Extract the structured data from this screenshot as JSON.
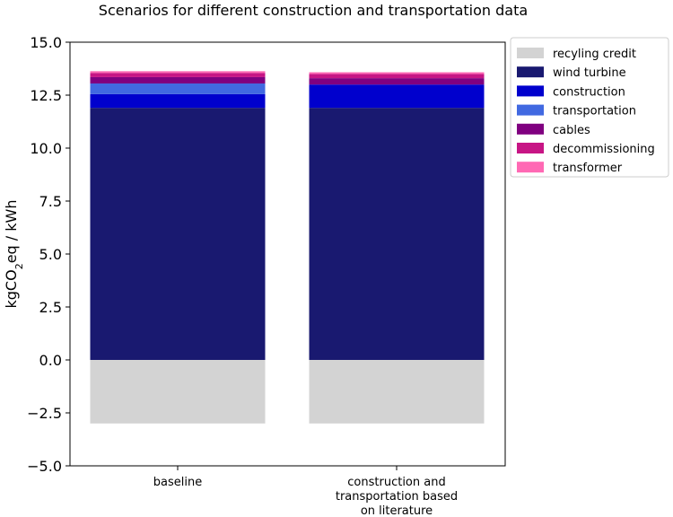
{
  "chart_data": {
    "type": "bar",
    "stacked": true,
    "title": "Scenarios for different construction and transportation data",
    "ylabel": "kgCO",
    "ylabel_sub": "2",
    "ylabel_tail": "eq / kWh",
    "ylim": [
      -5.0,
      15.0
    ],
    "yticks": [
      "−5.0",
      "−2.5",
      "0.0",
      "2.5",
      "5.0",
      "7.5",
      "10.0",
      "12.5",
      "15.0"
    ],
    "categories": [
      [
        "baseline"
      ],
      [
        "construction and",
        "transportation based",
        "on literature"
      ]
    ],
    "series": [
      {
        "name": "recyling credit",
        "color": "#d3d3d3",
        "values": [
          -3.0,
          -3.0
        ]
      },
      {
        "name": "wind turbine",
        "color": "#191970",
        "values": [
          11.9,
          11.9
        ]
      },
      {
        "name": "construction",
        "color": "#0000cd",
        "values": [
          0.65,
          1.1
        ]
      },
      {
        "name": "transportation",
        "color": "#4169e1",
        "values": [
          0.5,
          0.0
        ]
      },
      {
        "name": "cables",
        "color": "#800080",
        "values": [
          0.3,
          0.3
        ]
      },
      {
        "name": "decommissioning",
        "color": "#c71585",
        "values": [
          0.2,
          0.2
        ]
      },
      {
        "name": "transformer",
        "color": "#ff69b4",
        "values": [
          0.08,
          0.08
        ]
      }
    ],
    "legend_position": "upper right outside"
  }
}
